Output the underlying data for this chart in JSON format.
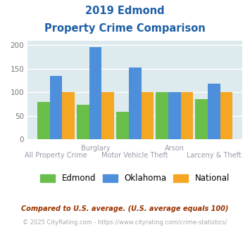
{
  "title_line1": "2019 Edmond",
  "title_line2": "Property Crime Comparison",
  "x_labels_top": [
    "",
    "Burglary",
    "",
    "Arson",
    ""
  ],
  "x_labels_bottom": [
    "All Property Crime",
    "",
    "Motor Vehicle Theft",
    "",
    "Larceny & Theft"
  ],
  "edmond": [
    80,
    73,
    58,
    100,
    85
  ],
  "oklahoma": [
    135,
    196,
    153,
    100,
    118
  ],
  "national": [
    100,
    100,
    100,
    100,
    100
  ],
  "edmond_color": "#6abf4b",
  "oklahoma_color": "#4d8fdb",
  "national_color": "#f5a623",
  "bg_color": "#ddeaee",
  "title_color": "#1f5fa6",
  "label_color": "#9999aa",
  "ylim": [
    0,
    210
  ],
  "yticks": [
    0,
    50,
    100,
    150,
    200
  ],
  "footnote1": "Compared to U.S. average. (U.S. average equals 100)",
  "footnote2": "© 2025 CityRating.com - https://www.cityrating.com/crime-statistics/",
  "footnote1_color": "#993300",
  "footnote2_color": "#aaaaaa"
}
